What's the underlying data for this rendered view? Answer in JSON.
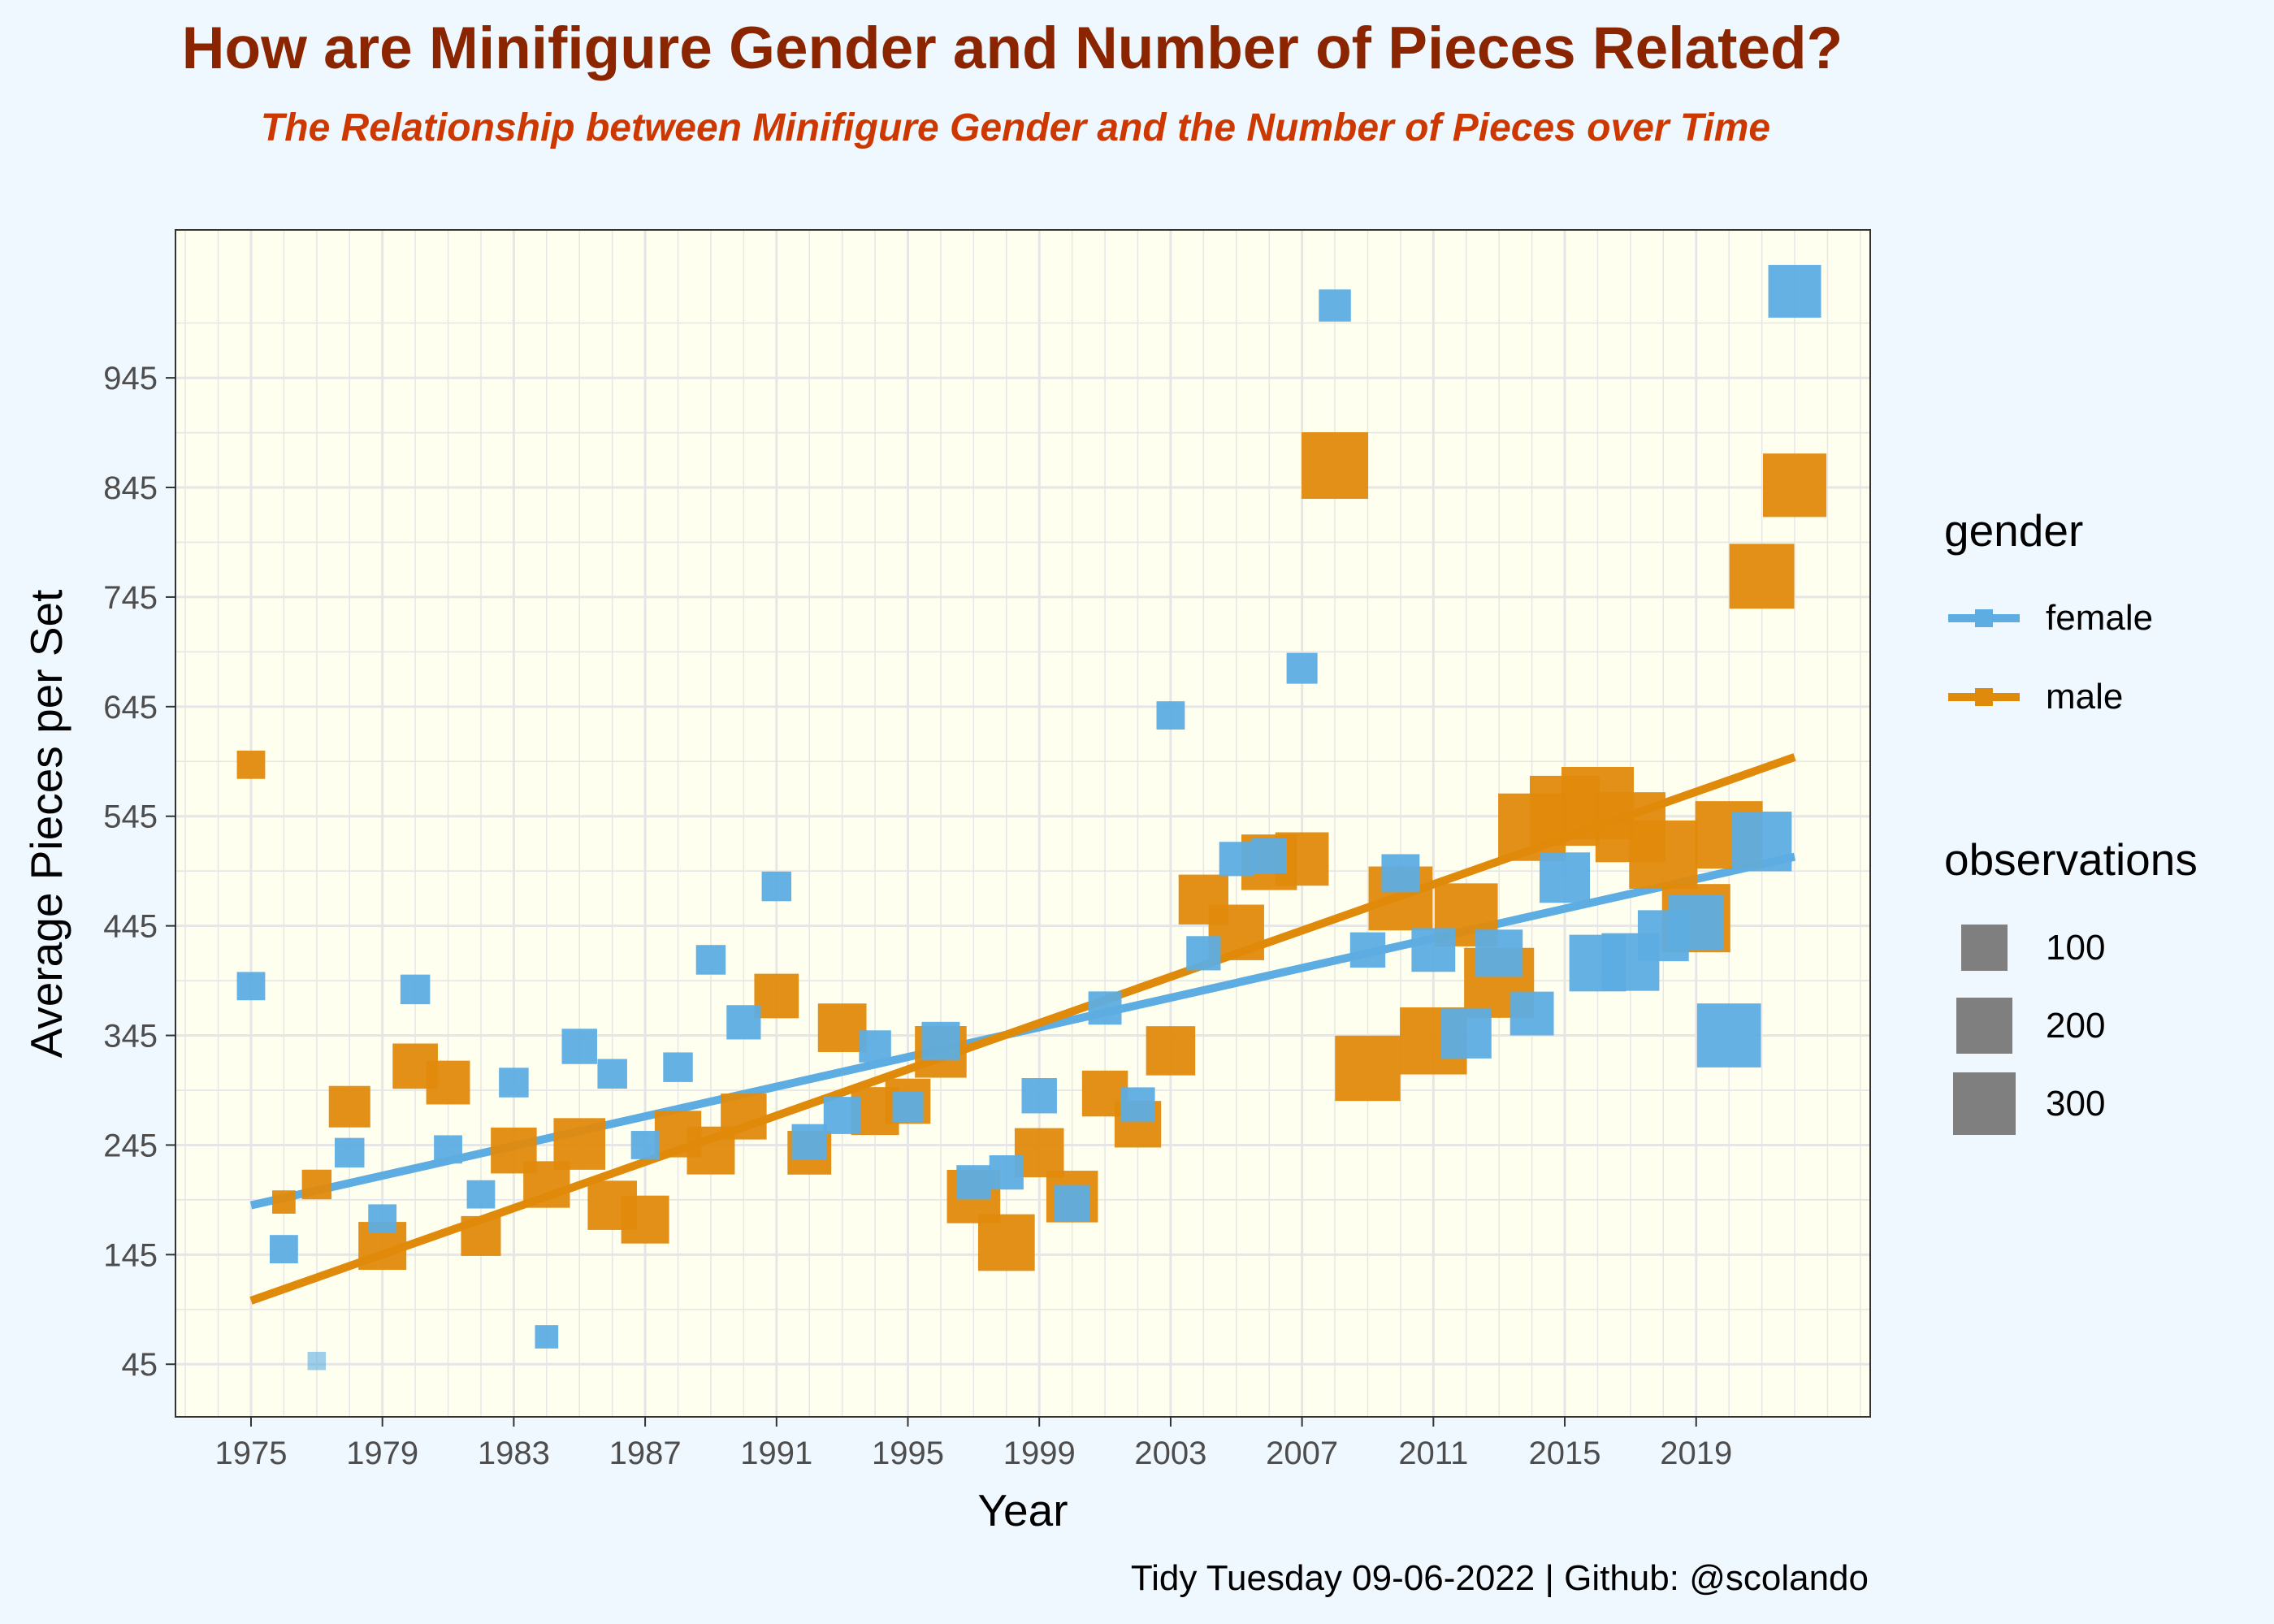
{
  "chart_data": {
    "type": "scatter",
    "title": "How are Minifigure Gender and Number of Pieces Related?",
    "subtitle": "The Relationship between Minifigure Gender and the Number of Pieces over Time",
    "xlabel": "Year",
    "ylabel": "Average Pieces per Set",
    "caption": "Tidy Tuesday 09-06-2022 | Github: @scolando",
    "xlim": [
      1972.7,
      2024.3
    ],
    "ylim": [
      -3,
      1080
    ],
    "x_ticks": [
      1975,
      1979,
      1983,
      1987,
      1991,
      1995,
      1999,
      2003,
      2007,
      2011,
      2015,
      2019
    ],
    "y_ticks": [
      45,
      145,
      245,
      345,
      445,
      545,
      645,
      745,
      845,
      945
    ],
    "grid": true,
    "legend_position": "right",
    "legend": {
      "color_title": "gender",
      "size_title": "observations",
      "size_entries": [
        100,
        200,
        300
      ]
    },
    "colors": {
      "female": "#5dade2",
      "male": "#e08a0b",
      "panel": "#fffff0",
      "background": "#f0f8ff",
      "grid": "#e6e6e6",
      "size_legend": "#7f7f7f"
    },
    "series": [
      {
        "name": "female",
        "points": [
          {
            "x": 1975,
            "y": 390,
            "n": 30
          },
          {
            "x": 1976,
            "y": 150,
            "n": 30
          },
          {
            "x": 1977,
            "y": 48,
            "n": 5
          },
          {
            "x": 1978,
            "y": 238,
            "n": 35
          },
          {
            "x": 1979,
            "y": 178,
            "n": 30
          },
          {
            "x": 1980,
            "y": 387,
            "n": 35
          },
          {
            "x": 1981,
            "y": 241,
            "n": 30
          },
          {
            "x": 1982,
            "y": 200,
            "n": 30
          },
          {
            "x": 1983,
            "y": 302,
            "n": 35
          },
          {
            "x": 1984,
            "y": 70,
            "n": 15
          },
          {
            "x": 1985,
            "y": 335,
            "n": 60
          },
          {
            "x": 1986,
            "y": 310,
            "n": 35
          },
          {
            "x": 1987,
            "y": 245,
            "n": 30
          },
          {
            "x": 1988,
            "y": 316,
            "n": 35
          },
          {
            "x": 1989,
            "y": 414,
            "n": 35
          },
          {
            "x": 1990,
            "y": 357,
            "n": 55
          },
          {
            "x": 1991,
            "y": 481,
            "n": 35
          },
          {
            "x": 1992,
            "y": 248,
            "n": 60
          },
          {
            "x": 1993,
            "y": 272,
            "n": 70
          },
          {
            "x": 1994,
            "y": 335,
            "n": 45
          },
          {
            "x": 1995,
            "y": 280,
            "n": 40
          },
          {
            "x": 1996,
            "y": 340,
            "n": 75
          },
          {
            "x": 1997,
            "y": 211,
            "n": 55
          },
          {
            "x": 1998,
            "y": 220,
            "n": 55
          },
          {
            "x": 1999,
            "y": 290,
            "n": 60
          },
          {
            "x": 2000,
            "y": 192,
            "n": 65
          },
          {
            "x": 2001,
            "y": 370,
            "n": 50
          },
          {
            "x": 2002,
            "y": 282,
            "n": 55
          },
          {
            "x": 2003,
            "y": 637,
            "n": 30
          },
          {
            "x": 2004,
            "y": 420,
            "n": 55
          },
          {
            "x": 2005,
            "y": 506,
            "n": 55
          },
          {
            "x": 2006,
            "y": 509,
            "n": 60
          },
          {
            "x": 2007,
            "y": 680,
            "n": 40
          },
          {
            "x": 2008,
            "y": 1011,
            "n": 45
          },
          {
            "x": 2009,
            "y": 423,
            "n": 60
          },
          {
            "x": 2010,
            "y": 493,
            "n": 75
          },
          {
            "x": 2011,
            "y": 423,
            "n": 110
          },
          {
            "x": 2012,
            "y": 347,
            "n": 160
          },
          {
            "x": 2013,
            "y": 420,
            "n": 135
          },
          {
            "x": 2014,
            "y": 365,
            "n": 110
          },
          {
            "x": 2015,
            "y": 489,
            "n": 160
          },
          {
            "x": 2016,
            "y": 411,
            "n": 215
          },
          {
            "x": 2017,
            "y": 412,
            "n": 225
          },
          {
            "x": 2018,
            "y": 436,
            "n": 165
          },
          {
            "x": 2019,
            "y": 448,
            "n": 205
          },
          {
            "x": 2020,
            "y": 345,
            "n": 290
          },
          {
            "x": 2021,
            "y": 522,
            "n": 245
          },
          {
            "x": 2022,
            "y": 1024,
            "n": 180
          }
        ]
      },
      {
        "name": "male",
        "points": [
          {
            "x": 1975,
            "y": 592,
            "n": 30
          },
          {
            "x": 1976,
            "y": 193,
            "n": 15
          },
          {
            "x": 1977,
            "y": 209,
            "n": 35
          },
          {
            "x": 1978,
            "y": 280,
            "n": 95
          },
          {
            "x": 1979,
            "y": 153,
            "n": 140
          },
          {
            "x": 1980,
            "y": 317,
            "n": 120
          },
          {
            "x": 1981,
            "y": 302,
            "n": 110
          },
          {
            "x": 1982,
            "y": 162,
            "n": 85
          },
          {
            "x": 1983,
            "y": 240,
            "n": 125
          },
          {
            "x": 1984,
            "y": 209,
            "n": 130
          },
          {
            "x": 1985,
            "y": 246,
            "n": 170
          },
          {
            "x": 1986,
            "y": 190,
            "n": 150
          },
          {
            "x": 1987,
            "y": 177,
            "n": 140
          },
          {
            "x": 1988,
            "y": 255,
            "n": 130
          },
          {
            "x": 1989,
            "y": 240,
            "n": 140
          },
          {
            "x": 1990,
            "y": 271,
            "n": 125
          },
          {
            "x": 1991,
            "y": 381,
            "n": 115
          },
          {
            "x": 1992,
            "y": 238,
            "n": 110
          },
          {
            "x": 1993,
            "y": 352,
            "n": 145
          },
          {
            "x": 1994,
            "y": 276,
            "n": 140
          },
          {
            "x": 1995,
            "y": 285,
            "n": 120
          },
          {
            "x": 1996,
            "y": 330,
            "n": 170
          },
          {
            "x": 1997,
            "y": 198,
            "n": 185
          },
          {
            "x": 1998,
            "y": 156,
            "n": 215
          },
          {
            "x": 1999,
            "y": 238,
            "n": 150
          },
          {
            "x": 2000,
            "y": 198,
            "n": 170
          },
          {
            "x": 2001,
            "y": 292,
            "n": 125
          },
          {
            "x": 2002,
            "y": 264,
            "n": 130
          },
          {
            "x": 2003,
            "y": 331,
            "n": 150
          },
          {
            "x": 2004,
            "y": 469,
            "n": 155
          },
          {
            "x": 2005,
            "y": 439,
            "n": 205
          },
          {
            "x": 2006,
            "y": 503,
            "n": 205
          },
          {
            "x": 2007,
            "y": 506,
            "n": 185
          },
          {
            "x": 2008,
            "y": 865,
            "n": 320
          },
          {
            "x": 2009,
            "y": 315,
            "n": 305
          },
          {
            "x": 2010,
            "y": 470,
            "n": 290
          },
          {
            "x": 2011,
            "y": 340,
            "n": 325
          },
          {
            "x": 2012,
            "y": 455,
            "n": 280
          },
          {
            "x": 2013,
            "y": 393,
            "n": 360
          },
          {
            "x": 2014,
            "y": 535,
            "n": 330
          },
          {
            "x": 2015,
            "y": 550,
            "n": 360
          },
          {
            "x": 2016,
            "y": 557,
            "n": 390
          },
          {
            "x": 2017,
            "y": 535,
            "n": 360
          },
          {
            "x": 2018,
            "y": 510,
            "n": 340
          },
          {
            "x": 2019,
            "y": 452,
            "n": 340
          },
          {
            "x": 2020,
            "y": 528,
            "n": 330
          },
          {
            "x": 2021,
            "y": 764,
            "n": 300
          },
          {
            "x": 2022,
            "y": 847,
            "n": 285
          }
        ]
      }
    ],
    "trend_lines": [
      {
        "name": "female",
        "x": [
          1975,
          2022
        ],
        "y": [
          190,
          508
        ]
      },
      {
        "name": "male",
        "x": [
          1975,
          2022
        ],
        "y": [
          103,
          599
        ]
      }
    ]
  }
}
